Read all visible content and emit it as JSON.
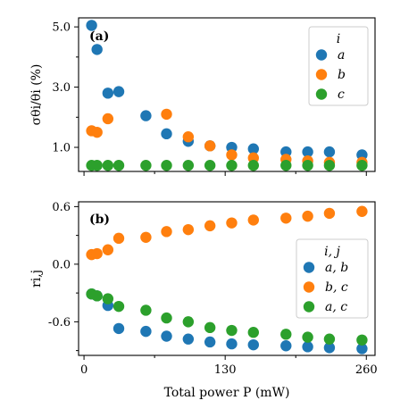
{
  "chart_data": [
    {
      "type": "scatter",
      "panel_label": "(a)",
      "ylabel": "σθi/θi (%)",
      "ylim": [
        0.2,
        5.3
      ],
      "yticks": [
        1.0,
        3.0,
        5.0
      ],
      "ytick_labels": [
        "1.0",
        "3.0",
        "5.0"
      ],
      "xlim": [
        -5,
        268
      ],
      "legend_title": "i",
      "legend_position": "top-right",
      "series": [
        {
          "name": "a",
          "color": "#1f77b4",
          "x": [
            7,
            12,
            22,
            32,
            57,
            76,
            96,
            116,
            136,
            156,
            186,
            206,
            226,
            256
          ],
          "y": [
            5.05,
            4.25,
            2.8,
            2.85,
            2.05,
            1.45,
            1.2,
            1.05,
            1.0,
            0.95,
            0.85,
            0.85,
            0.85,
            0.75
          ]
        },
        {
          "name": "b",
          "color": "#ff7f0e",
          "x": [
            7,
            12,
            22,
            76,
            96,
            116,
            136,
            156,
            186,
            206,
            226,
            256
          ],
          "y": [
            1.55,
            1.5,
            1.95,
            2.1,
            1.35,
            1.05,
            0.75,
            0.65,
            0.6,
            0.55,
            0.5,
            0.5
          ]
        },
        {
          "name": "c",
          "color": "#2ca02c",
          "x": [
            7,
            12,
            22,
            32,
            57,
            76,
            96,
            116,
            136,
            156,
            186,
            206,
            226,
            256
          ],
          "y": [
            0.4,
            0.4,
            0.4,
            0.4,
            0.4,
            0.4,
            0.4,
            0.4,
            0.4,
            0.4,
            0.4,
            0.4,
            0.4,
            0.4
          ]
        }
      ]
    },
    {
      "type": "scatter",
      "panel_label": "(b)",
      "ylabel": "ri,j",
      "xlabel": "Total power P (mW)",
      "xticks": [
        0,
        130,
        260
      ],
      "xtick_labels": [
        "0",
        "130",
        "260"
      ],
      "xlim": [
        -5,
        268
      ],
      "ylim": [
        -0.95,
        0.65
      ],
      "yticks": [
        -0.6,
        0.0,
        0.6
      ],
      "ytick_labels": [
        "-0.6",
        "0.0",
        "0.6"
      ],
      "legend_title": "i, j",
      "legend_position": "center-right",
      "series": [
        {
          "name": "a, b",
          "color": "#1f77b4",
          "x": [
            7,
            12,
            22,
            32,
            57,
            76,
            96,
            116,
            136,
            156,
            186,
            206,
            226,
            256
          ],
          "y": [
            -0.31,
            -0.33,
            -0.43,
            -0.67,
            -0.7,
            -0.75,
            -0.78,
            -0.81,
            -0.83,
            -0.84,
            -0.85,
            -0.86,
            -0.87,
            -0.88
          ]
        },
        {
          "name": "b, c",
          "color": "#ff7f0e",
          "x": [
            7,
            12,
            22,
            32,
            57,
            76,
            96,
            116,
            136,
            156,
            186,
            206,
            226,
            256
          ],
          "y": [
            0.1,
            0.11,
            0.15,
            0.27,
            0.28,
            0.34,
            0.36,
            0.4,
            0.43,
            0.46,
            0.48,
            0.5,
            0.53,
            0.55
          ]
        },
        {
          "name": "a, c",
          "color": "#2ca02c",
          "x": [
            7,
            12,
            22,
            32,
            57,
            76,
            96,
            116,
            136,
            156,
            186,
            206,
            226,
            256
          ],
          "y": [
            -0.31,
            -0.33,
            -0.36,
            -0.44,
            -0.48,
            -0.56,
            -0.6,
            -0.66,
            -0.69,
            -0.71,
            -0.73,
            -0.76,
            -0.78,
            -0.79
          ]
        }
      ]
    }
  ]
}
